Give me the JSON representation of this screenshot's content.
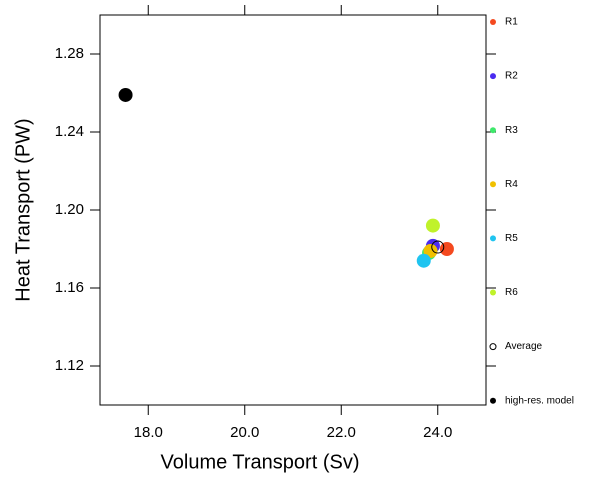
{
  "chart_data": {
    "type": "scatter",
    "x_label": "Volume Transport (Sv)",
    "y_label": "Heat Transport (PW)",
    "xlim": [
      17,
      25
    ],
    "ylim": [
      1.1,
      1.3
    ],
    "xticks": [
      {
        "value": 18,
        "label": "18.0"
      },
      {
        "value": 20,
        "label": "20.0"
      },
      {
        "value": 22,
        "label": "22.0"
      },
      {
        "value": 24,
        "label": "24.0"
      }
    ],
    "yticks": [
      1.12,
      1.16,
      {
        "value": 1.2,
        "label": "1.20"
      },
      1.24,
      1.28
    ],
    "series": [
      {
        "name": "R1",
        "color": "#f4491f",
        "x": [
          24.19
        ],
        "values": [
          1.18
        ]
      },
      {
        "name": "R2",
        "color": "#4a2bf0",
        "x": [
          23.9
        ],
        "values": [
          1.1816
        ]
      },
      {
        "name": "R3",
        "color": "#3ee86b",
        "x": [
          23.82
        ],
        "values": [
          1.178
        ]
      },
      {
        "name": "R4",
        "color": "#f0c000",
        "x": [
          23.85
        ],
        "values": [
          1.179
        ]
      },
      {
        "name": "R5",
        "color": "#1fc4f0",
        "x": [
          23.71
        ],
        "values": [
          1.174
        ]
      },
      {
        "name": "R6",
        "color": "#c0f22a",
        "x": [
          23.9
        ],
        "values": [
          1.192
        ]
      },
      {
        "name": "Average",
        "color": "none",
        "x": [
          24.0
        ],
        "values": [
          1.181
        ]
      },
      {
        "name": "high-res. model",
        "color": "#000000",
        "x": [
          17.53
        ],
        "values": [
          1.259
        ]
      }
    ]
  }
}
